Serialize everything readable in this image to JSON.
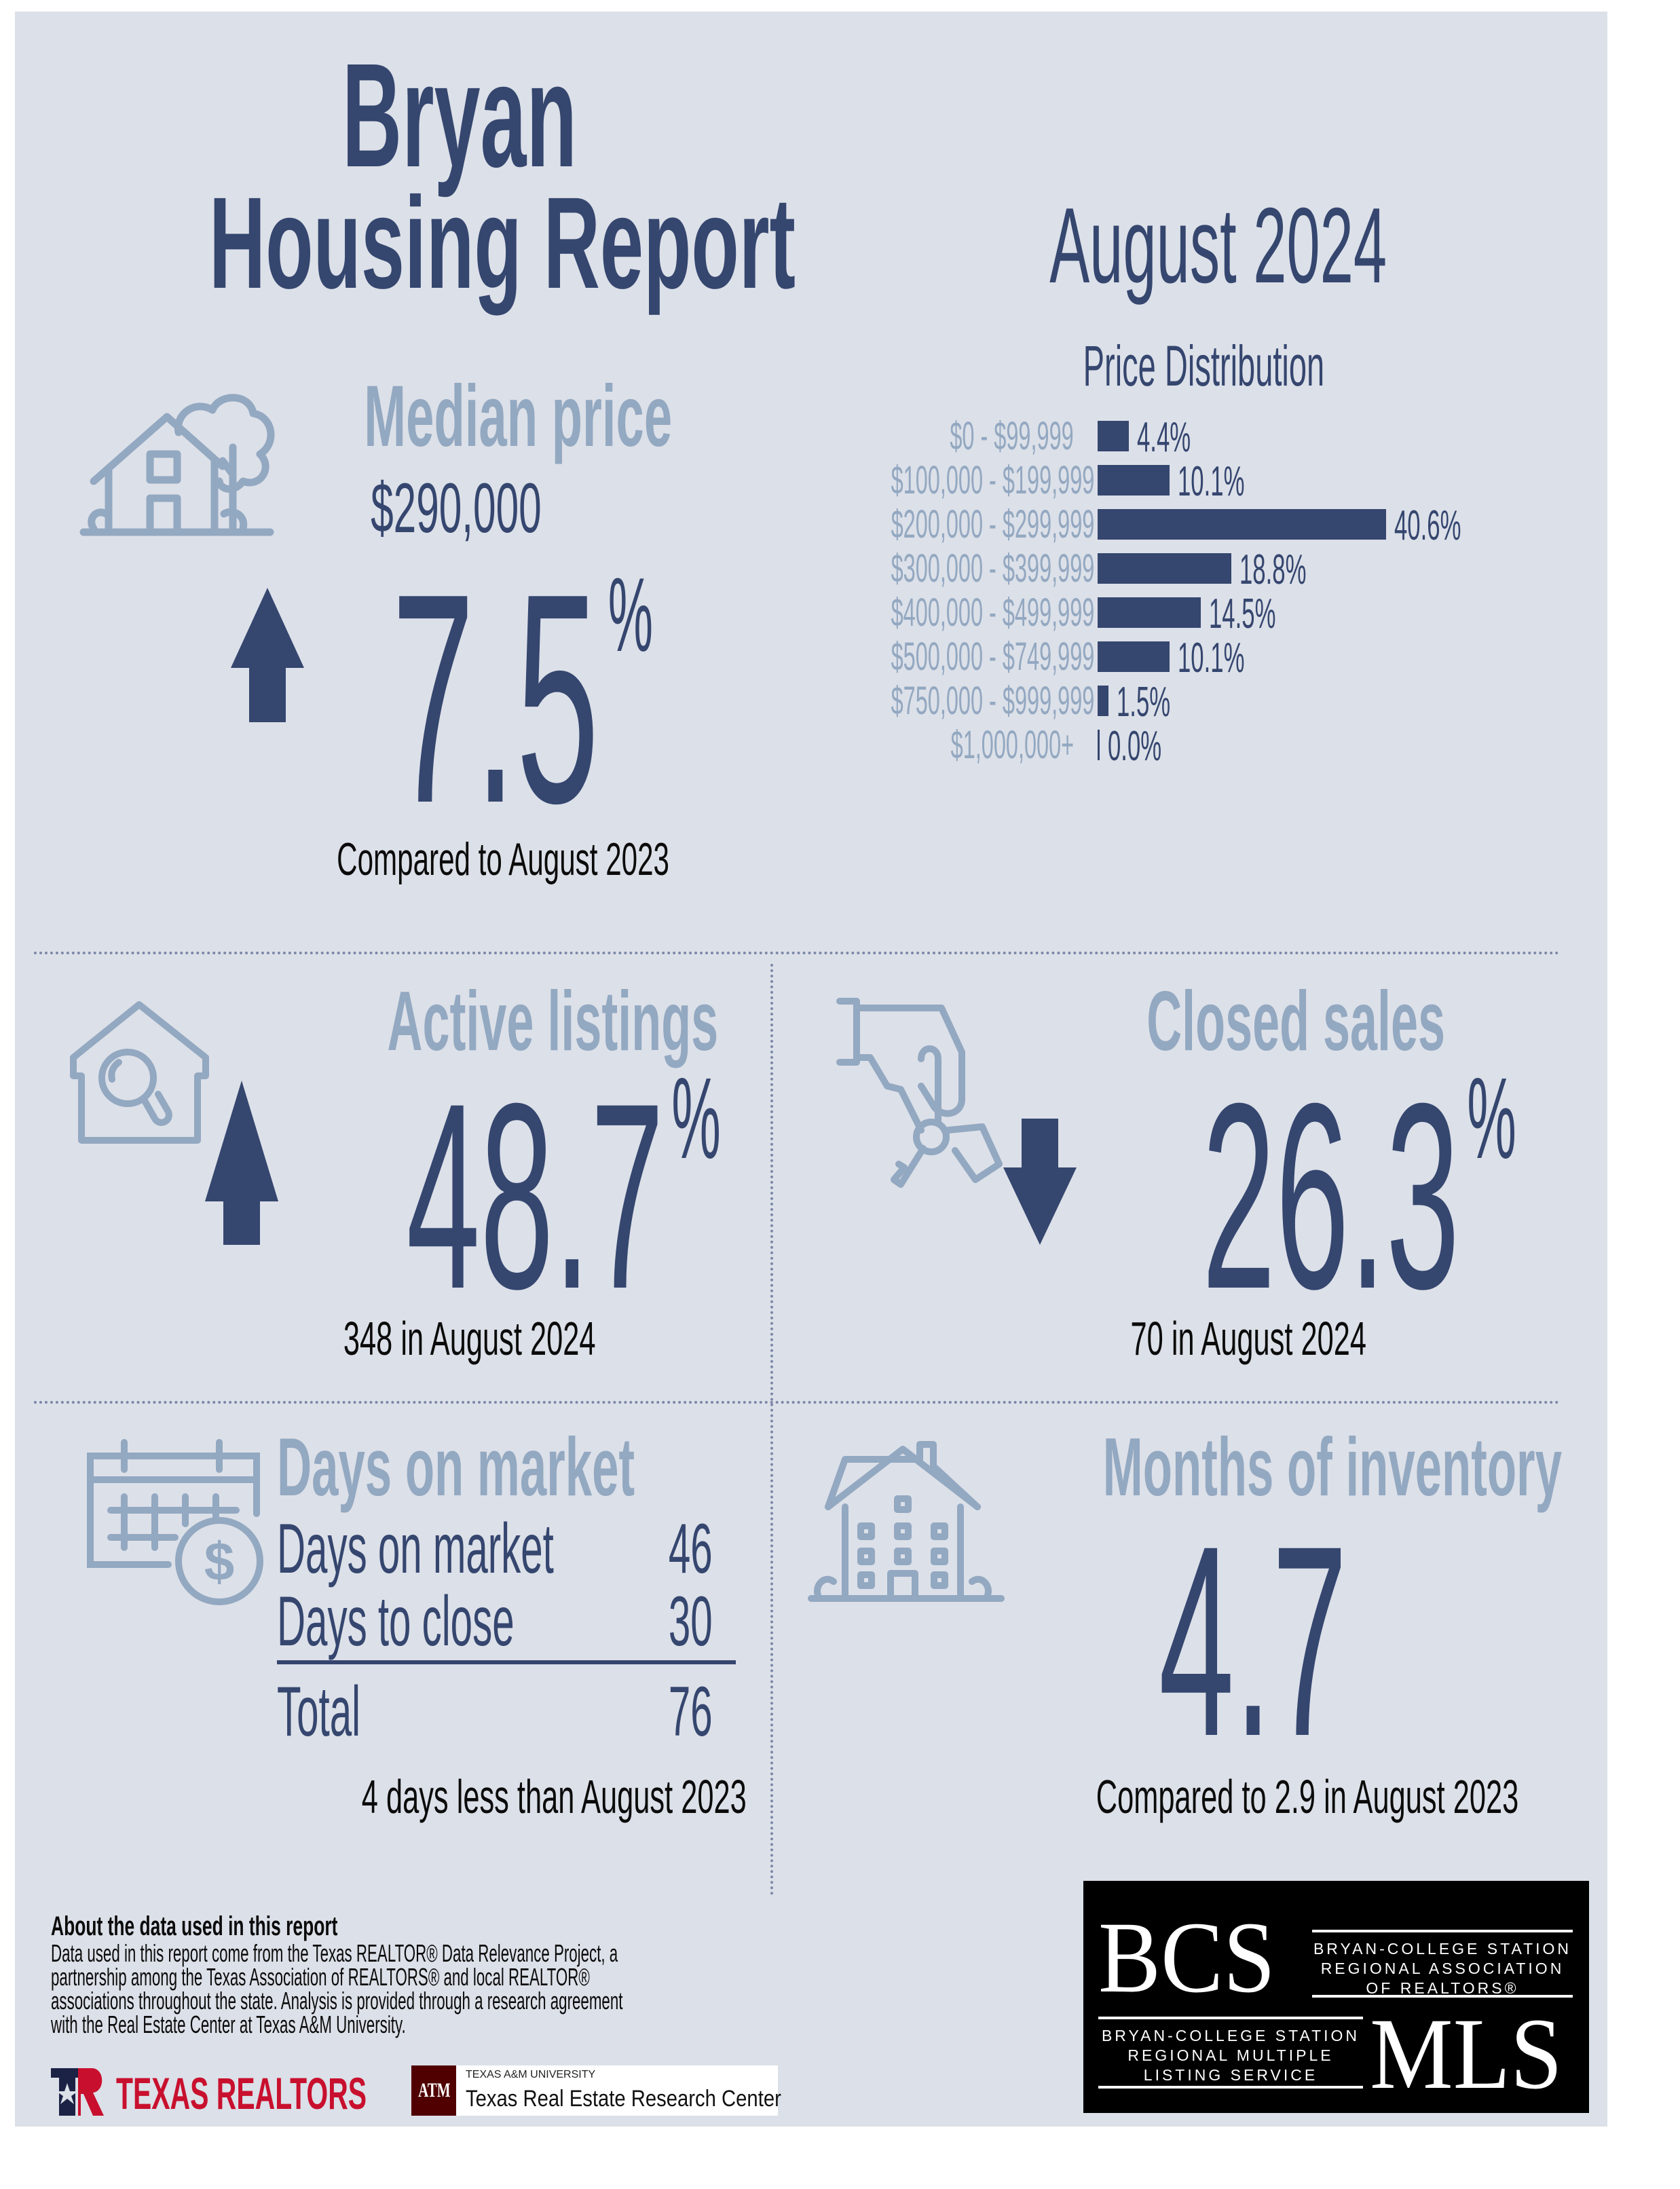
{
  "header": {
    "city": "Bryan",
    "report_title": "Housing Report",
    "period": "August 2024"
  },
  "median_price": {
    "heading": "Median price",
    "value": "$290,000",
    "change_direction": "up",
    "change_value": "7.5",
    "change_unit": "%",
    "caption": "Compared to August 2023",
    "icon": "house-with-tree-icon"
  },
  "chart_data": {
    "type": "bar",
    "orientation": "horizontal",
    "title": "Price Distribution",
    "categories": [
      "$0 - $99,999",
      "$100,000 - $199,999",
      "$200,000 - $299,999",
      "$300,000 - $399,999",
      "$400,000 - $499,999",
      "$500,000 - $749,999",
      "$750,000 - $999,999",
      "$1,000,000+"
    ],
    "values": [
      4.4,
      10.1,
      40.6,
      18.8,
      14.5,
      10.1,
      1.5,
      0.0
    ],
    "value_labels": [
      "4.4%",
      "10.1%",
      "40.6%",
      "18.8%",
      "14.5%",
      "10.1%",
      "1.5%",
      "0.0%"
    ],
    "unit": "%",
    "xlabel": "",
    "ylabel": "",
    "xlim": [
      0,
      40.6
    ],
    "grid": false,
    "legend": "none",
    "colors": {
      "bar": "#35466f",
      "category_label": "#93a8c1",
      "value_label": "#35466f"
    }
  },
  "active_listings": {
    "heading": "Active listings",
    "change_direction": "up",
    "change_value": "48.7",
    "change_unit": "%",
    "caption": "348 in August 2024",
    "icon": "house-search-icon"
  },
  "closed_sales": {
    "heading": "Closed sales",
    "change_direction": "down",
    "change_value": "26.3",
    "change_unit": "%",
    "caption": "70 in August 2024",
    "icon": "hand-with-keys-icon"
  },
  "days_on_market": {
    "heading": "Days on market",
    "rows": [
      {
        "label": "Days on market",
        "value": "46"
      },
      {
        "label": "Days to close",
        "value": "30"
      }
    ],
    "total": {
      "label": "Total",
      "value": "76"
    },
    "caption": "4 days less than August 2023",
    "icon": "calendar-dollar-icon"
  },
  "months_inventory": {
    "heading": "Months of inventory",
    "value": "4.7",
    "caption": "Compared to 2.9 in August 2023",
    "icon": "apartment-building-icon"
  },
  "footer": {
    "about_heading": "About the data used in this report",
    "about_lines": [
      "Data used in this report come from the Texas REALTOR® Data Relevance Project, a",
      "partnership among the Texas Association of REALTORS® and local REALTOR®",
      "associations throughout the state. Analysis is provided through a research agreement",
      "with the Real Estate Center at Texas A&M University."
    ],
    "texas_realtors_logo": {
      "text": "TEXAS REALTORS",
      "mark": "TR",
      "registered": "®"
    },
    "tamu_logo": {
      "mark": "ATM",
      "university": "TEXAS A&M UNIVERSITY",
      "center": "Texas Real Estate Research Center"
    },
    "bcs_logo": {
      "top_mark": "BCS",
      "top_text": [
        "BRYAN-COLLEGE STATION",
        "REGIONAL ASSOCIATION",
        "OF REALTORS®"
      ],
      "bottom_mark": "MLS",
      "bottom_text": [
        "BRYAN-COLLEGE STATION",
        "REGIONAL MULTIPLE",
        "LISTING SERVICE"
      ]
    }
  },
  "colors": {
    "background": "#dce0e8",
    "navy": "#35466f",
    "muted_blue": "#93a8c1",
    "texas_red": "#c8102e",
    "texas_navy": "#1b2245",
    "aggie_maroon": "#500000"
  }
}
